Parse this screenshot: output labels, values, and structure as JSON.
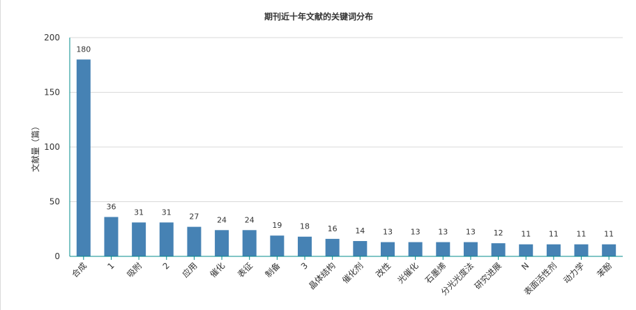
{
  "chart_data": {
    "type": "bar",
    "title": "期刊近十年文献的关键词分布",
    "ylabel": "文献量（篇）",
    "xlabel": "",
    "ylim": [
      0,
      200
    ],
    "yticks": [
      0,
      50,
      100,
      150,
      200
    ],
    "grid": true,
    "categories": [
      "合成",
      "1",
      "吸附",
      "2",
      "应用",
      "催化",
      "表征",
      "制备",
      "3",
      "晶体结构",
      "催化剂",
      "改性",
      "光催化",
      "石墨烯",
      "分光光度法",
      "研究进展",
      "N",
      "表面活性剂",
      "动力学",
      "苯酚"
    ],
    "values": [
      180,
      36,
      31,
      31,
      27,
      24,
      24,
      19,
      18,
      16,
      14,
      13,
      13,
      13,
      13,
      12,
      11,
      11,
      11,
      11
    ],
    "bar_color": "#4682b4",
    "axis_color": "#008b8b"
  }
}
